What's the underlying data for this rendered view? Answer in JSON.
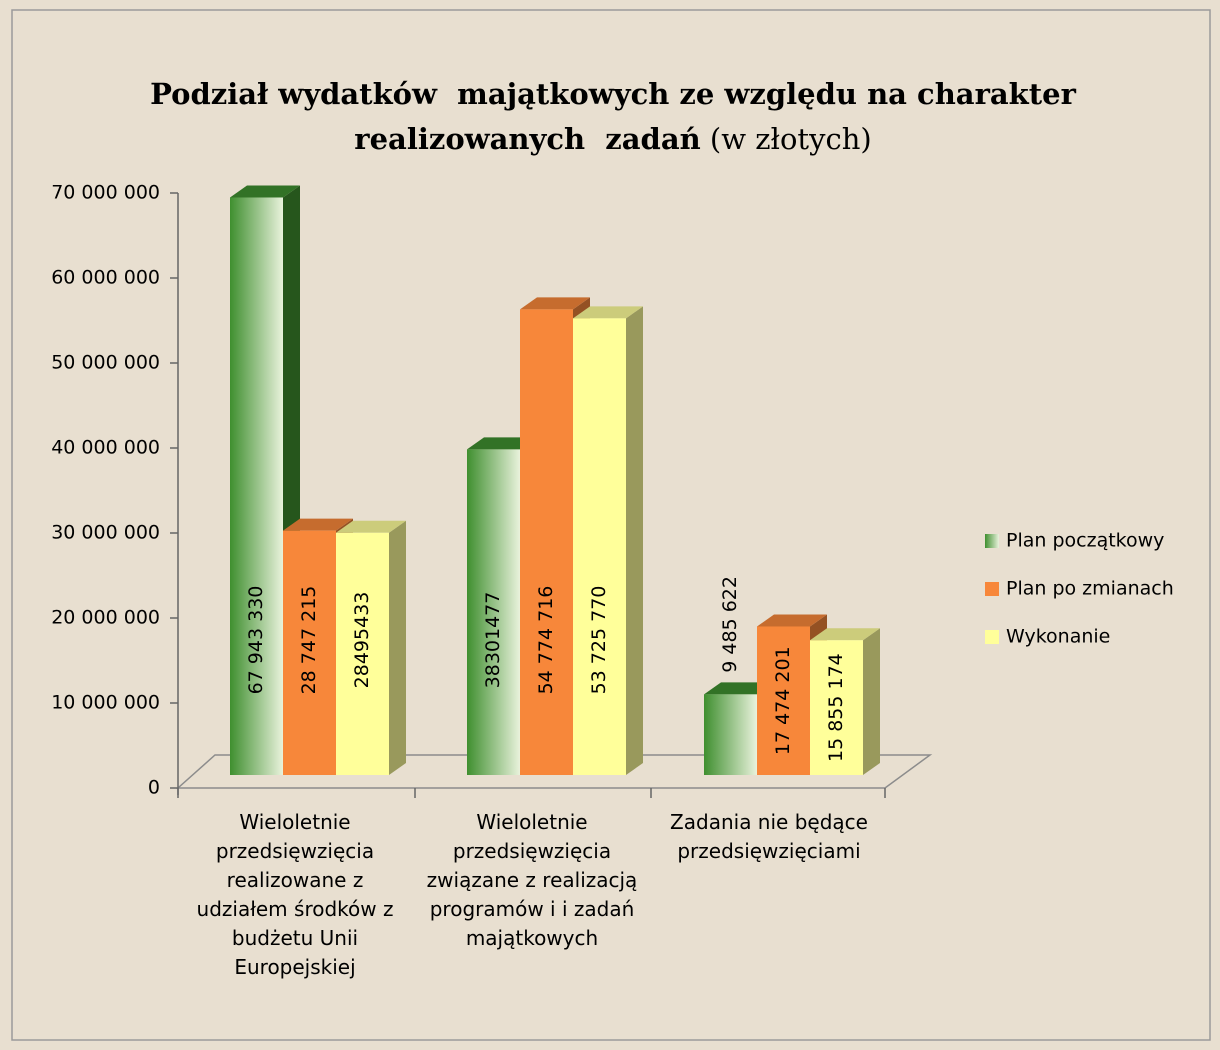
{
  "chart_data": {
    "type": "bar3d",
    "title": "Podział wydatków  majątkowych ze względu na charakter realizowanych  zadań",
    "title_unit": "(w złotych)",
    "categories": [
      "Wieloletnie przedsięwzięcia realizowane z udziałem środków z budżetu Unii Europejskiej",
      "Wieloletnie przedsięwzięcia związane z realizacją programów i i zadań majątkowych",
      "Zadania nie będące przedsięwzięciami"
    ],
    "series": [
      {
        "name": "Plan początkowy",
        "color": "#3f8f2f",
        "values": [
          67943330,
          38301477,
          9485622
        ],
        "value_labels": [
          "67 943 330",
          "38301477",
          "9 485 622"
        ]
      },
      {
        "name": "Plan po zmianach",
        "color": "#f7873a",
        "values": [
          28747215,
          54774716,
          17474201
        ],
        "value_labels": [
          "28 747 215",
          "54 774 716",
          "17 474 201"
        ]
      },
      {
        "name": "Wykonanie",
        "color": "#ffff9a",
        "values": [
          28495433,
          53725770,
          15855174
        ],
        "value_labels": [
          "28495433",
          "53 725 770",
          "15 855 174"
        ]
      }
    ],
    "ylim": [
      0,
      70000000
    ],
    "yticks": [
      0,
      {
        "value": 10000000,
        "label": "10 000 000"
      },
      {
        "value": 20000000,
        "label": "20 000 000"
      },
      {
        "value": 30000000,
        "label": "30 000 000"
      },
      {
        "value": 40000000,
        "label": "40 000 000"
      },
      {
        "value": 50000000,
        "label": "50 000 000"
      },
      {
        "value": 60000000,
        "label": "60 000 000"
      },
      {
        "value": 70000000,
        "label": "70 000 000"
      }
    ],
    "legend": "right"
  }
}
